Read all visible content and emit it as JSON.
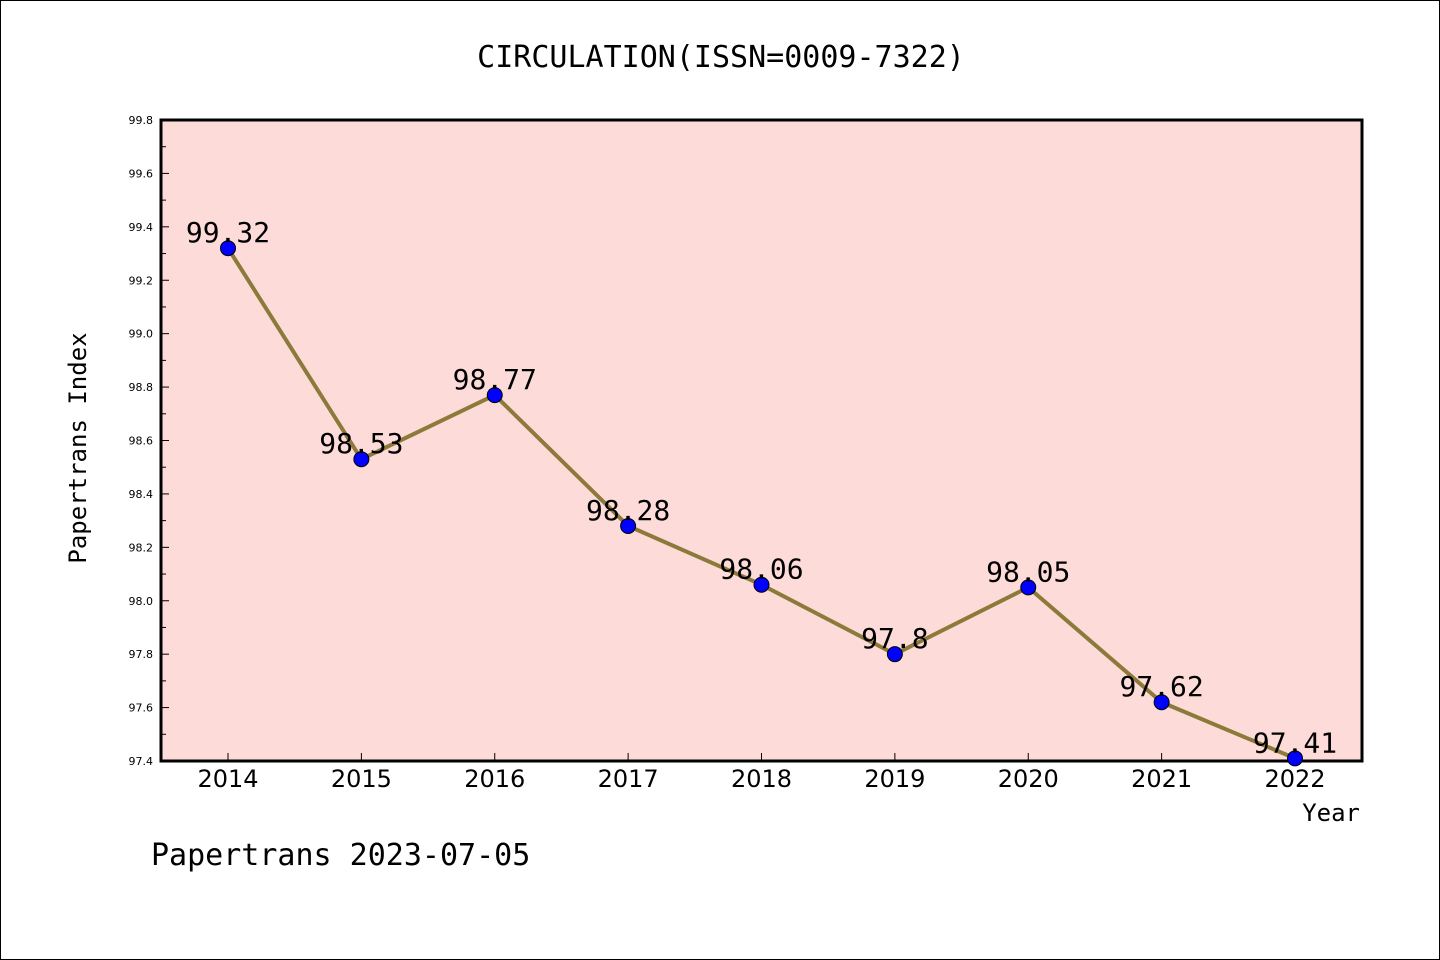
{
  "chart_data": {
    "type": "line",
    "title": "CIRCULATION(ISSN=0009-7322)",
    "xlabel": "Year",
    "ylabel": "Papertrans Index",
    "categories": [
      "2014",
      "2015",
      "2016",
      "2017",
      "2018",
      "2019",
      "2020",
      "2021",
      "2022"
    ],
    "series": [
      {
        "values": [
          99.32,
          98.53,
          98.77,
          98.28,
          98.06,
          97.8,
          98.05,
          97.62,
          97.41
        ],
        "labels": [
          "99.32",
          "98.53",
          "98.77",
          "98.28",
          "98.06",
          "97.8",
          "98.05",
          "97.62",
          "97.41"
        ]
      }
    ],
    "ylim": [
      97.4,
      99.8
    ],
    "yticks": [
      "97.4",
      "97.6",
      "97.8",
      "98.0",
      "98.2",
      "98.4",
      "98.6",
      "98.8",
      "99.0",
      "99.2",
      "99.4",
      "99.6",
      "99.8"
    ],
    "grid": false,
    "colors": {
      "plot_background": "#FDDBD9",
      "line": "#8B7A3A",
      "marker": "#0000FF"
    }
  },
  "footer": "Papertrans 2023-07-05"
}
